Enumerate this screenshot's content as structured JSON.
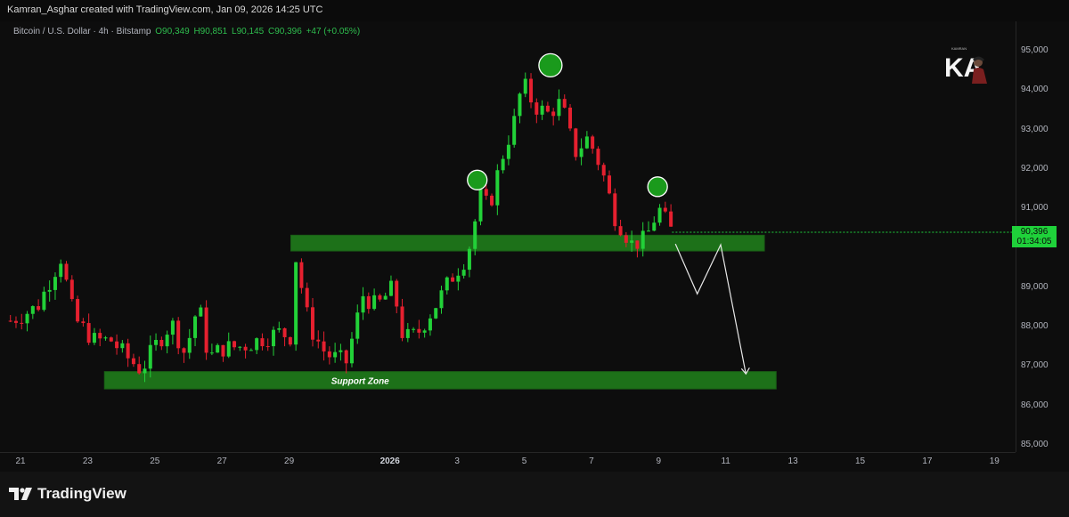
{
  "header": {
    "credit": "Kamran_Asghar created with TradingView.com, Jan 09, 2026 14:25 UTC"
  },
  "legend": {
    "symbol": "Bitcoin / U.S. Dollar · 4h · Bitstamp",
    "open": "O90,349",
    "high": "H90,851",
    "low": "L90,145",
    "close": "C90,396",
    "change": "+47 (+0.05%)"
  },
  "price_tag": {
    "price": "90,396",
    "countdown": "01:34:05",
    "color": "#1fd13a"
  },
  "footer": {
    "brand": "TradingView",
    "logo_icon": "tradingview-logo-icon"
  },
  "watermark": {
    "icon": "ka-avatar-logo-icon",
    "letters": "KA",
    "caption": "KAMRAN"
  },
  "colors": {
    "up": "#22d138",
    "down": "#e5202f",
    "zone": "#1e7a1a",
    "background": "#0d0d0d"
  },
  "chart_data": {
    "type": "candlestick",
    "title": "Bitcoin / U.S. Dollar · 4h · Bitstamp",
    "y_ticks": [
      "95,000",
      "94,000",
      "93,000",
      "92,000",
      "91,000",
      "89,000",
      "88,000",
      "87,000",
      "86,000",
      "85,000"
    ],
    "y_tick_values": [
      95000,
      94000,
      93000,
      92000,
      91000,
      89000,
      88000,
      87000,
      86000,
      85000
    ],
    "ylim": [
      84700,
      95600
    ],
    "x_ticks": [
      {
        "label": "21",
        "day": 21
      },
      {
        "label": "23",
        "day": 23
      },
      {
        "label": "25",
        "day": 25
      },
      {
        "label": "27",
        "day": 27
      },
      {
        "label": "29",
        "day": 29
      },
      {
        "label": "2026",
        "day": 32,
        "bold": true
      },
      {
        "label": "3",
        "day": 34
      },
      {
        "label": "5",
        "day": 36
      },
      {
        "label": "7",
        "day": 38
      },
      {
        "label": "9",
        "day": 40
      },
      {
        "label": "11",
        "day": 42
      },
      {
        "label": "13",
        "day": 44
      },
      {
        "label": "15",
        "day": 46
      },
      {
        "label": "17",
        "day": 48
      },
      {
        "label": "19",
        "day": 50
      }
    ],
    "zones": [
      {
        "name": "resistance-zone",
        "label": "",
        "from_day": 29.05,
        "to_day": 43.15,
        "low": 89920,
        "high": 90320
      },
      {
        "name": "support-zone",
        "label": "Support Zone",
        "from_day": 23.5,
        "to_day": 43.5,
        "low": 86420,
        "high": 86860
      }
    ],
    "circles": [
      {
        "day": 36.78,
        "price": 94630,
        "size": "large"
      },
      {
        "day": 34.6,
        "price": 91720,
        "size": "small"
      },
      {
        "day": 39.97,
        "price": 91550,
        "size": "small"
      }
    ],
    "projection": [
      {
        "day": 40.5,
        "price": 90100
      },
      {
        "day": 41.15,
        "price": 88830
      },
      {
        "day": 41.85,
        "price": 90080
      },
      {
        "day": 42.6,
        "price": 86800
      }
    ],
    "anchor_points": [
      {
        "day": 20.7,
        "price": 88150
      },
      {
        "day": 21.5,
        "price": 88500
      },
      {
        "day": 22.2,
        "price": 89750
      },
      {
        "day": 22.6,
        "price": 88200
      },
      {
        "day": 23.2,
        "price": 87650
      },
      {
        "day": 23.7,
        "price": 87650
      },
      {
        "day": 24.2,
        "price": 87200
      },
      {
        "day": 24.6,
        "price": 86900
      },
      {
        "day": 25.0,
        "price": 87500
      },
      {
        "day": 25.5,
        "price": 88100
      },
      {
        "day": 25.9,
        "price": 87300
      },
      {
        "day": 26.3,
        "price": 88600
      },
      {
        "day": 26.6,
        "price": 87200
      },
      {
        "day": 27.0,
        "price": 87450
      },
      {
        "day": 27.6,
        "price": 87500
      },
      {
        "day": 28.2,
        "price": 87700
      },
      {
        "day": 28.7,
        "price": 87850
      },
      {
        "day": 29.05,
        "price": 87750
      },
      {
        "day": 29.15,
        "price": 89950
      },
      {
        "day": 29.6,
        "price": 88000
      },
      {
        "day": 30.1,
        "price": 87300
      },
      {
        "day": 30.7,
        "price": 87100
      },
      {
        "day": 31.2,
        "price": 88800
      },
      {
        "day": 31.6,
        "price": 88500
      },
      {
        "day": 32.1,
        "price": 89000
      },
      {
        "day": 32.4,
        "price": 87700
      },
      {
        "day": 32.8,
        "price": 87800
      },
      {
        "day": 33.4,
        "price": 88600
      },
      {
        "day": 33.8,
        "price": 89200
      },
      {
        "day": 34.3,
        "price": 89800
      },
      {
        "day": 34.7,
        "price": 91300
      },
      {
        "day": 34.95,
        "price": 91000
      },
      {
        "day": 35.3,
        "price": 92200
      },
      {
        "day": 35.7,
        "price": 93200
      },
      {
        "day": 35.95,
        "price": 94200
      },
      {
        "day": 36.3,
        "price": 93600
      },
      {
        "day": 36.7,
        "price": 93400
      },
      {
        "day": 37.1,
        "price": 93700
      },
      {
        "day": 37.5,
        "price": 92400
      },
      {
        "day": 37.9,
        "price": 92800
      },
      {
        "day": 38.3,
        "price": 92000
      },
      {
        "day": 38.7,
        "price": 90800
      },
      {
        "day": 39.2,
        "price": 90100
      },
      {
        "day": 39.6,
        "price": 90200
      },
      {
        "day": 40.0,
        "price": 91000
      },
      {
        "day": 40.4,
        "price": 90396
      }
    ]
  }
}
